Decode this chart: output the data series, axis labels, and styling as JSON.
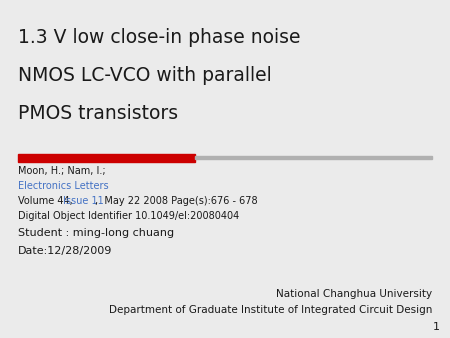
{
  "title_line1": "1.3 V low close-in phase noise",
  "title_line2": "NMOS LC-VCO with parallel",
  "title_line3": "PMOS transistors",
  "author": "Moon, H.; Nam, I.;",
  "journal_link": "Electronics Letters",
  "volume_before": "Volume 44, ",
  "volume_link": "Issue 11",
  "volume_after": ",  May 22 2008 Page(s):676 - 678",
  "doi": "Digital Object Identifier 10.1049/el:20080404",
  "student": "Student : ming-long chuang",
  "date": "Date:12/28/2009",
  "university": "National Changhua University",
  "department": "Department of Graduate Institute of Integrated Circuit Design",
  "page_num": "1",
  "bg_color": "#ebebeb",
  "title_color": "#1a1a1a",
  "text_color": "#1a1a1a",
  "link_color": "#4472c4",
  "red_color": "#cc0000",
  "gray_color": "#b0b0b0"
}
